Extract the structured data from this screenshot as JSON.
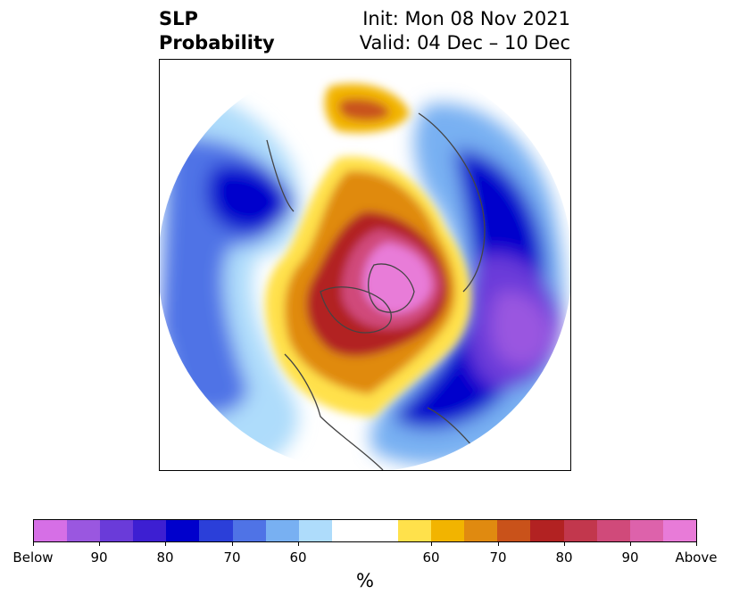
{
  "title": {
    "variable": "SLP",
    "subtitle": "Probability",
    "init": "Init: Mon 08 Nov 2021",
    "valid": "Valid: 04 Dec – 10 Dec"
  },
  "map": {
    "projection": "north-polar-stereographic",
    "region": "Northern Hemisphere",
    "land_outline_color": "#444444"
  },
  "colorbar": {
    "units": "%",
    "below_colors": [
      "#d66fe6",
      "#9a57e0",
      "#6a3bd9",
      "#3d1fd2",
      "#0000cc",
      "#2b3fd9",
      "#4f73e6",
      "#78b0f2",
      "#aedcfb"
    ],
    "neutral_color": "#ffffff",
    "above_colors": [
      "#ffe14b",
      "#f2b400",
      "#e08a10",
      "#c9521a",
      "#b22222",
      "#c2374d",
      "#d04a7a",
      "#dd62ab",
      "#e87bd8"
    ],
    "tick_labels": [
      "Below",
      "90",
      "80",
      "70",
      "60",
      "60",
      "70",
      "80",
      "90",
      "Above"
    ]
  }
}
